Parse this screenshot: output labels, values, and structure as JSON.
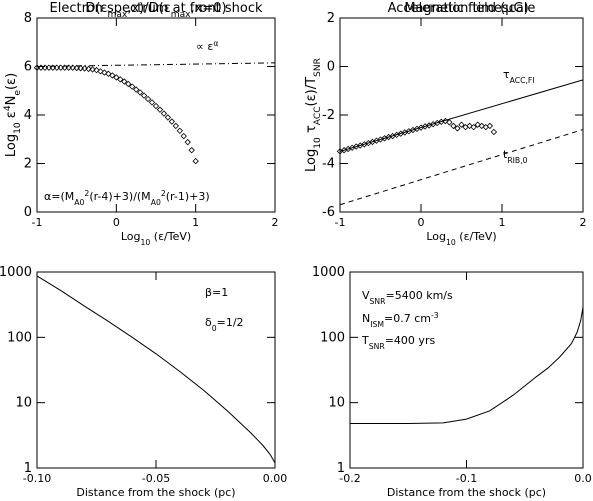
{
  "chart_data": [
    {
      "type": "line",
      "title": [
        "Electron spectrum at front shock"
      ],
      "xlabel": [
        "Log",
        {
          "sub": "10"
        },
        " (ε/TeV)"
      ],
      "ylabel": [
        "Log",
        {
          "sub": "10"
        },
        " ε",
        {
          "sup": "4"
        },
        "N",
        {
          "sub": "e"
        },
        "(ε)"
      ],
      "xlim": [
        -1,
        2
      ],
      "xticks": [
        -1,
        0,
        1,
        2
      ],
      "ylim": [
        0,
        8
      ],
      "yticks": [
        0,
        2,
        4,
        6,
        8
      ],
      "series": [
        {
          "style": "diamond",
          "color": "#000000",
          "x": [
            -1,
            -0.95,
            -0.9,
            -0.85,
            -0.8,
            -0.75,
            -0.7,
            -0.65,
            -0.6,
            -0.55,
            -0.5,
            -0.45,
            -0.4,
            -0.35,
            -0.3,
            -0.25,
            -0.2,
            -0.15,
            -0.1,
            -0.05,
            0,
            0.05,
            0.1,
            0.15,
            0.2,
            0.25,
            0.3,
            0.35,
            0.4,
            0.45,
            0.5,
            0.55,
            0.6,
            0.65,
            0.7,
            0.75,
            0.8,
            0.85,
            0.9,
            0.95,
            1.0
          ],
          "values": [
            5.95,
            5.95,
            5.95,
            5.95,
            5.95,
            5.95,
            5.95,
            5.95,
            5.95,
            5.95,
            5.94,
            5.93,
            5.92,
            5.9,
            5.88,
            5.85,
            5.8,
            5.75,
            5.7,
            5.63,
            5.55,
            5.47,
            5.38,
            5.28,
            5.17,
            5.05,
            4.93,
            4.8,
            4.66,
            4.52,
            4.37,
            4.22,
            4.06,
            3.9,
            3.73,
            3.55,
            3.35,
            3.13,
            2.88,
            2.55,
            2.1
          ]
        },
        {
          "style": "dashdot",
          "color": "#000000",
          "x": [
            -1,
            2
          ],
          "values": [
            6.0,
            6.15
          ]
        }
      ],
      "annotations": [
        [
          "∝ ε",
          {
            "sup": "α"
          }
        ],
        [
          "α=(M",
          {
            "sub": "A0"
          },
          {
            "sup": "2"
          },
          "(r-4)+3)/(M",
          {
            "sub": "A0"
          },
          {
            "sup": "2"
          },
          "(r-1)+3)"
        ]
      ]
    },
    {
      "type": "line",
      "title": [
        "Acceleration timescale"
      ],
      "xlabel": [
        "Log",
        {
          "sub": "10"
        },
        " (ε/TeV)"
      ],
      "ylabel": [
        "Log",
        {
          "sub": "10"
        },
        " τ",
        {
          "sub": "ACC"
        },
        "(ε)/T",
        {
          "sub": "SNR"
        }
      ],
      "xlim": [
        -1,
        2
      ],
      "xticks": [
        -1,
        0,
        1,
        2
      ],
      "ylim": [
        -6,
        2
      ],
      "yticks": [
        -6,
        -4,
        -2,
        0,
        2
      ],
      "series": [
        {
          "style": "solid",
          "color": "#000000",
          "x": [
            -1,
            2
          ],
          "values": [
            -3.5,
            -0.55
          ]
        },
        {
          "style": "dashed",
          "color": "#000000",
          "x": [
            -1,
            2
          ],
          "values": [
            -5.7,
            -2.6
          ]
        },
        {
          "style": "diamond",
          "color": "#000000",
          "x": [
            -1,
            -0.95,
            -0.9,
            -0.85,
            -0.8,
            -0.75,
            -0.7,
            -0.65,
            -0.6,
            -0.55,
            -0.5,
            -0.45,
            -0.4,
            -0.35,
            -0.3,
            -0.25,
            -0.2,
            -0.15,
            -0.1,
            -0.05,
            0,
            0.05,
            0.1,
            0.15,
            0.2,
            0.25,
            0.3,
            0.35,
            0.4,
            0.45,
            0.5,
            0.55,
            0.6,
            0.65,
            0.7,
            0.75,
            0.8,
            0.85,
            0.9
          ],
          "values": [
            -3.5,
            -3.45,
            -3.4,
            -3.35,
            -3.3,
            -3.26,
            -3.21,
            -3.16,
            -3.11,
            -3.06,
            -3.01,
            -2.96,
            -2.91,
            -2.87,
            -2.82,
            -2.77,
            -2.72,
            -2.67,
            -2.62,
            -2.57,
            -2.52,
            -2.47,
            -2.43,
            -2.38,
            -2.33,
            -2.28,
            -2.25,
            -2.3,
            -2.45,
            -2.55,
            -2.4,
            -2.5,
            -2.45,
            -2.5,
            -2.4,
            -2.45,
            -2.5,
            -2.45,
            -2.7
          ]
        }
      ],
      "annotations": [
        [
          "τ",
          {
            "sub": "ACC,FI"
          }
        ],
        [
          "t",
          {
            "sub": "RIB,0"
          }
        ]
      ]
    },
    {
      "type": "line",
      "title": [
        "D(ε",
        {
          "sub": "max"
        },
        ",x)/D(ε",
        {
          "sub": "max"
        },
        ",x=0)"
      ],
      "xlabel": [
        "Distance from the shock (pc)"
      ],
      "xlim": [
        -0.1,
        0
      ],
      "xticks": [
        {
          "value": -0.1,
          "label": "-0.10"
        },
        -0.05,
        {
          "value": 0,
          "label": "0.00"
        }
      ],
      "ylog": true,
      "ylim": [
        1,
        1000
      ],
      "yticks": [
        1,
        10,
        100,
        1000
      ],
      "series": [
        {
          "style": "solid",
          "color": "#000000",
          "x": [
            -0.1,
            -0.09,
            -0.08,
            -0.07,
            -0.06,
            -0.05,
            -0.04,
            -0.03,
            -0.02,
            -0.01,
            -0.005,
            -0.002,
            0
          ],
          "values": [
            870,
            520,
            300,
            175,
            100,
            56,
            30,
            15.5,
            7.5,
            3.4,
            2.2,
            1.6,
            1.2
          ]
        }
      ],
      "annotations": [
        [
          "β=1"
        ],
        [
          "δ",
          {
            "sub": "0"
          },
          "=1/2"
        ]
      ]
    },
    {
      "type": "line",
      "title": [
        "Magnetic field (μG)"
      ],
      "xlabel": [
        "Distance from the shock (pc)"
      ],
      "xlim": [
        -0.2,
        0
      ],
      "xticks": [
        -0.2,
        -0.1,
        {
          "value": 0,
          "label": "0.0"
        }
      ],
      "ylog": true,
      "ylim": [
        1,
        1000
      ],
      "yticks": [
        1,
        10,
        100,
        1000
      ],
      "series": [
        {
          "style": "solid",
          "color": "#000000",
          "x": [
            -0.2,
            -0.15,
            -0.12,
            -0.1,
            -0.08,
            -0.06,
            -0.04,
            -0.03,
            -0.02,
            -0.01,
            -0.005,
            -0.002,
            0
          ],
          "values": [
            4.8,
            4.8,
            4.9,
            5.6,
            7.5,
            13,
            25,
            34,
            50,
            80,
            120,
            180,
            290
          ]
        }
      ],
      "annotations": [
        [
          "V",
          {
            "sub": "SNR"
          },
          "=5400 km/s"
        ],
        [
          "N",
          {
            "sub": "ISM"
          },
          "=0.7 cm",
          {
            "sup": "-3"
          }
        ],
        [
          "T",
          {
            "sub": "SNR"
          },
          "=400 yrs"
        ]
      ]
    }
  ]
}
